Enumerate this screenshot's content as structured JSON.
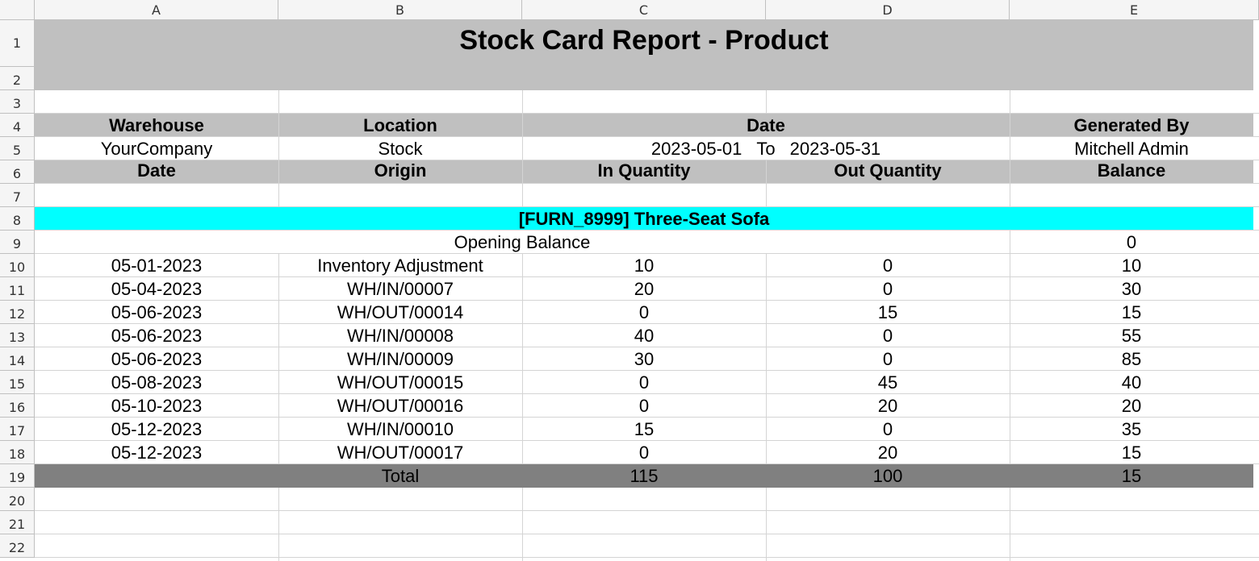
{
  "columns": [
    "A",
    "B",
    "C",
    "D",
    "E"
  ],
  "rows": [
    "1",
    "2",
    "3",
    "4",
    "5",
    "6",
    "7",
    "8",
    "9",
    "10",
    "11",
    "12",
    "13",
    "14",
    "15",
    "16",
    "17",
    "18",
    "19",
    "20",
    "21",
    "22"
  ],
  "report": {
    "title": "Stock Card Report - Product",
    "meta_headers": {
      "warehouse": "Warehouse",
      "location": "Location",
      "date": "Date",
      "generated_by": "Generated By"
    },
    "meta_values": {
      "warehouse": "YourCompany",
      "location": "Stock",
      "date_from": "2023-05-01",
      "date_to_label": "To",
      "date_to": "2023-05-31",
      "generated_by": "Mitchell Admin"
    },
    "table_headers": {
      "date": "Date",
      "origin": "Origin",
      "in_qty": "In Quantity",
      "out_qty": "Out Quantity",
      "balance": "Balance"
    },
    "product": "[FURN_8999] Three-Seat Sofa",
    "opening_balance": {
      "label": "Opening Balance",
      "value": "0"
    },
    "moves": [
      {
        "date": "05-01-2023",
        "origin": "Inventory Adjustment",
        "in": "10",
        "out": "0",
        "balance": "10"
      },
      {
        "date": "05-04-2023",
        "origin": "WH/IN/00007",
        "in": "20",
        "out": "0",
        "balance": "30"
      },
      {
        "date": "05-06-2023",
        "origin": "WH/OUT/00014",
        "in": "0",
        "out": "15",
        "balance": "15"
      },
      {
        "date": "05-06-2023",
        "origin": "WH/IN/00008",
        "in": "40",
        "out": "0",
        "balance": "55"
      },
      {
        "date": "05-06-2023",
        "origin": "WH/IN/00009",
        "in": "30",
        "out": "0",
        "balance": "85"
      },
      {
        "date": "05-08-2023",
        "origin": "WH/OUT/00015",
        "in": "0",
        "out": "45",
        "balance": "40"
      },
      {
        "date": "05-10-2023",
        "origin": "WH/OUT/00016",
        "in": "0",
        "out": "20",
        "balance": "20"
      },
      {
        "date": "05-12-2023",
        "origin": "WH/IN/00010",
        "in": "15",
        "out": "0",
        "balance": "35"
      },
      {
        "date": "05-12-2023",
        "origin": "WH/OUT/00017",
        "in": "0",
        "out": "20",
        "balance": "15"
      }
    ],
    "total": {
      "label": "Total",
      "in": "115",
      "out": "100",
      "balance": "15"
    }
  },
  "colors": {
    "header_fill": "#c0c0c0",
    "product_fill": "#00ffff",
    "total_fill": "#808080",
    "grid": "#d4d4d4"
  }
}
